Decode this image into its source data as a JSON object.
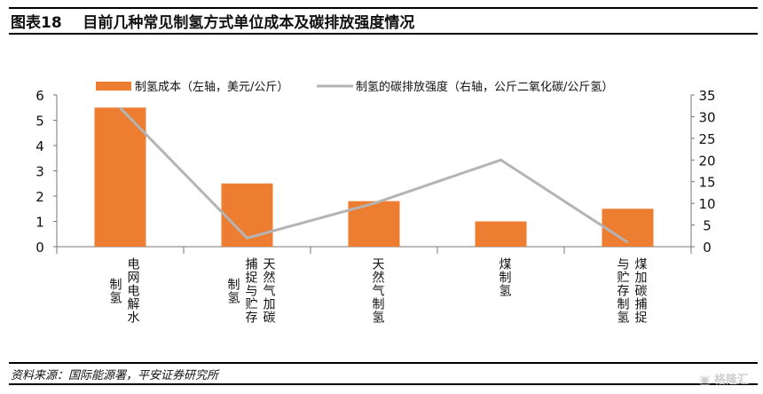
{
  "header": {
    "title": "图表18    目前几种常见制氢方式单位成本及碳排放强度情况"
  },
  "footer": {
    "source": "资料来源：国际能源署，平安证券研究所",
    "watermark": "格隆汇"
  },
  "chart_data": {
    "type": "bar+line",
    "title": "目前几种常见制氢方式单位成本及碳排放强度情况",
    "categories": [
      "电网电解水制氢",
      "天然气加碳捕捉与贮存制氢",
      "天然气制氢",
      "煤制氢",
      "煤加碳捕捉与贮存制氢"
    ],
    "series": [
      {
        "name": "制氢成本（左轴，美元/公斤）",
        "type": "bar",
        "axis": "left",
        "color": "#ED7D31",
        "values": [
          5.5,
          2.5,
          1.8,
          1.0,
          1.5
        ]
      },
      {
        "name": "制氢的碳排放强度（右轴，公斤二氧化碳/公斤氢）",
        "type": "line",
        "axis": "right",
        "color": "#B4B4B4",
        "values": [
          32,
          2,
          10,
          20,
          1
        ]
      }
    ],
    "y_left": {
      "ylim": [
        0,
        6
      ],
      "ticks": [
        0,
        1,
        2,
        3,
        4,
        5,
        6
      ]
    },
    "y_right": {
      "ylim": [
        0,
        35
      ],
      "ticks": [
        0,
        5,
        10,
        15,
        20,
        25,
        30,
        35
      ]
    },
    "legend_position": "top",
    "grid": false
  }
}
